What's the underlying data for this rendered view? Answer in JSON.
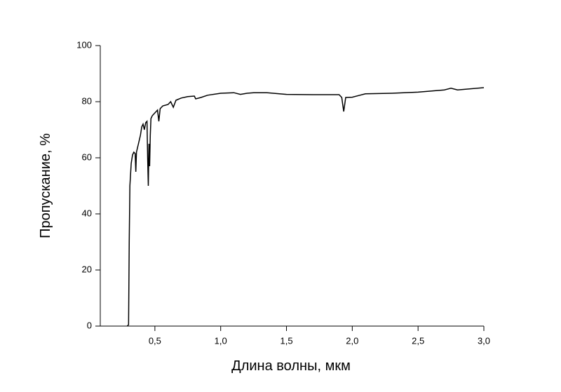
{
  "chart_data": {
    "type": "line",
    "xlabel": "Длина волны, мкм",
    "ylabel": "Пропускание, %",
    "x": [
      0.29,
      0.3,
      0.305,
      0.31,
      0.32,
      0.33,
      0.34,
      0.35,
      0.355,
      0.36,
      0.37,
      0.38,
      0.39,
      0.4,
      0.41,
      0.42,
      0.43,
      0.44,
      0.445,
      0.45,
      0.455,
      0.46,
      0.465,
      0.47,
      0.48,
      0.5,
      0.52,
      0.53,
      0.54,
      0.56,
      0.6,
      0.62,
      0.64,
      0.66,
      0.7,
      0.75,
      0.8,
      0.81,
      0.85,
      0.9,
      1.0,
      1.1,
      1.15,
      1.2,
      1.25,
      1.35,
      1.5,
      1.7,
      1.9,
      1.92,
      1.935,
      1.95,
      2.0,
      2.1,
      2.3,
      2.5,
      2.7,
      2.75,
      2.8,
      3.0
    ],
    "values": [
      0,
      0.5,
      30,
      50,
      58,
      61,
      62,
      61.5,
      55,
      62,
      64,
      66,
      68,
      71,
      72,
      70,
      72.5,
      73,
      60,
      50,
      65,
      57,
      68,
      74,
      75,
      76,
      77,
      73,
      77.5,
      78.5,
      79,
      80,
      78,
      80.5,
      81.3,
      81.8,
      82,
      81,
      81.5,
      82.3,
      83,
      83.2,
      82.6,
      83,
      83.2,
      83.2,
      82.6,
      82.5,
      82.5,
      81.5,
      76.5,
      81.5,
      81.6,
      82.8,
      83,
      83.4,
      84.2,
      84.8,
      84.2,
      85
    ],
    "color": "#000000",
    "xlim": [
      0.085,
      3.0
    ],
    "ylim": [
      0,
      100
    ],
    "xticks": [
      {
        "value": 0.5,
        "label": "0,5"
      },
      {
        "value": 1.0,
        "label": "1,0"
      },
      {
        "value": 1.5,
        "label": "1,5"
      },
      {
        "value": 2.0,
        "label": "2,0"
      },
      {
        "value": 2.5,
        "label": "2,5"
      },
      {
        "value": 3.0,
        "label": "3,0"
      }
    ],
    "yticks": [
      0,
      20,
      40,
      60,
      80,
      100
    ]
  }
}
